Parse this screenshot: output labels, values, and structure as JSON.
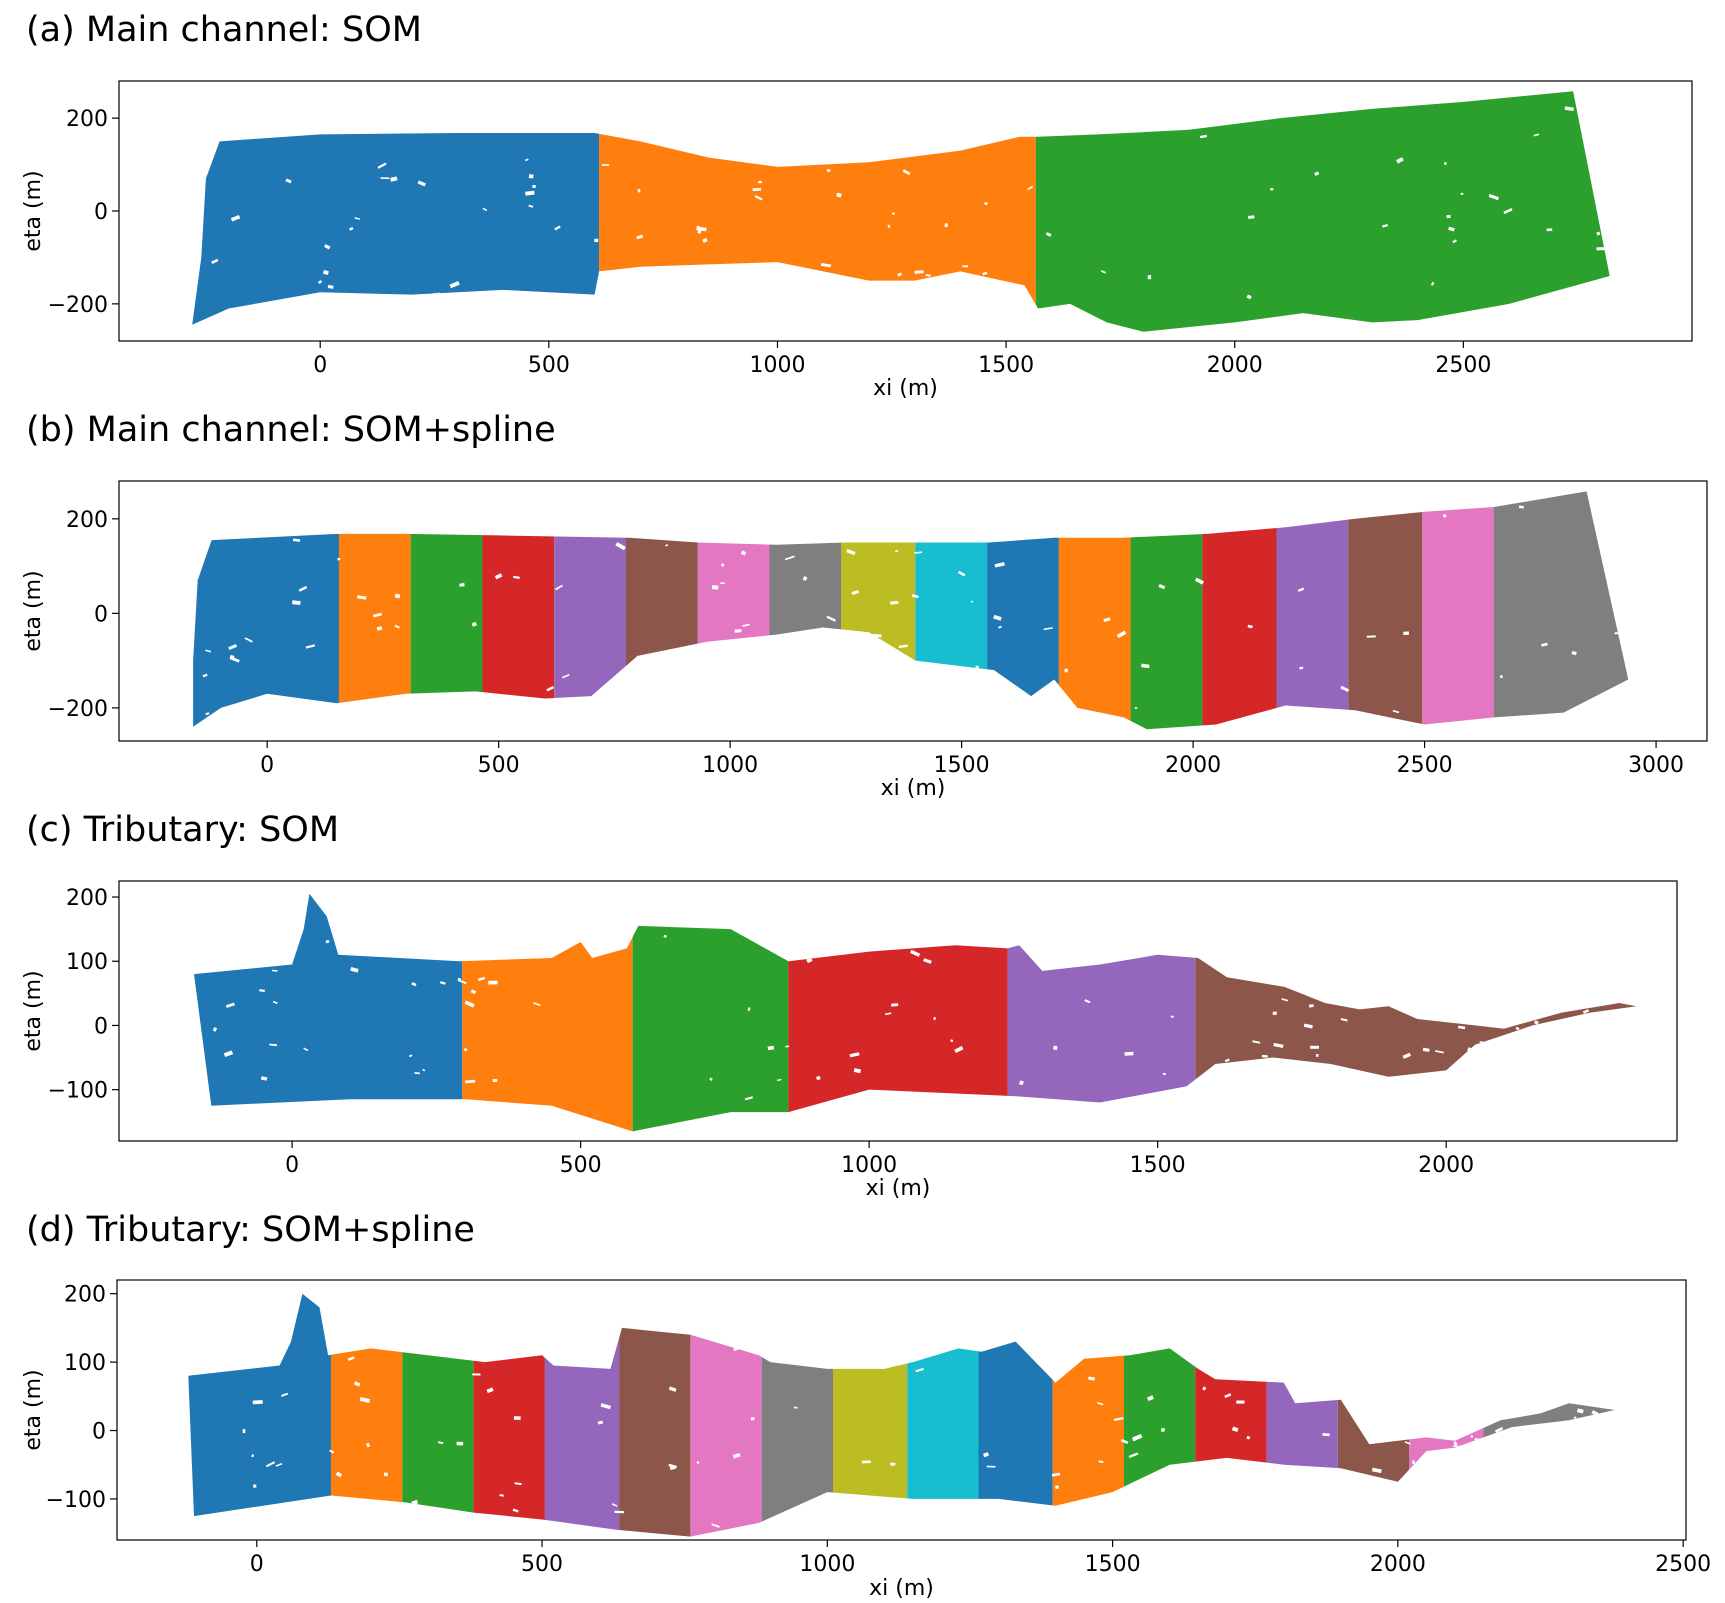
{
  "colors": {
    "tab:blue": "#1f77b4",
    "tab:orange": "#ff7f0e",
    "tab:green": "#2ca02c",
    "tab:red": "#d62728",
    "tab:purple": "#9467bd",
    "tab:brown": "#8c564b",
    "tab:pink": "#e377c2",
    "tab:gray": "#7f7f7f",
    "tab:olive": "#bcbd22",
    "tab:cyan": "#17becf"
  },
  "chart_data": [
    {
      "id": "a",
      "type": "scatter",
      "title": "(a) Main channel: SOM",
      "xlabel": "xi (m)",
      "ylabel": "eta (m)",
      "xlim": [
        -440,
        3000
      ],
      "ylim": [
        -280,
        280
      ],
      "xticks": [
        0,
        500,
        1000,
        1500,
        2000,
        2500
      ],
      "yticks": [
        -200,
        0,
        200
      ],
      "ytick_labels": [
        "−200",
        "0",
        "200"
      ],
      "grid": false,
      "legend": "none",
      "upper_bound": [
        [
          -260,
          -100
        ],
        [
          -250,
          70
        ],
        [
          -220,
          150
        ],
        [
          0,
          165
        ],
        [
          300,
          168
        ],
        [
          600,
          168
        ],
        [
          700,
          150
        ],
        [
          850,
          115
        ],
        [
          1000,
          95
        ],
        [
          1200,
          105
        ],
        [
          1400,
          130
        ],
        [
          1530,
          160
        ],
        [
          1570,
          160
        ],
        [
          1700,
          165
        ],
        [
          1900,
          175
        ],
        [
          2100,
          200
        ],
        [
          2300,
          220
        ],
        [
          2500,
          235
        ],
        [
          2740,
          258
        ],
        [
          2820,
          -140
        ]
      ],
      "lower_bound": [
        [
          2820,
          -140
        ],
        [
          2600,
          -200
        ],
        [
          2400,
          -235
        ],
        [
          2300,
          -240
        ],
        [
          2150,
          -220
        ],
        [
          2000,
          -240
        ],
        [
          1800,
          -260
        ],
        [
          1720,
          -240
        ],
        [
          1640,
          -200
        ],
        [
          1570,
          -210
        ],
        [
          1540,
          -160
        ],
        [
          1400,
          -130
        ],
        [
          1300,
          -150
        ],
        [
          1200,
          -150
        ],
        [
          1000,
          -110
        ],
        [
          850,
          -115
        ],
        [
          700,
          -120
        ],
        [
          610,
          -130
        ],
        [
          600,
          -180
        ],
        [
          400,
          -170
        ],
        [
          200,
          -180
        ],
        [
          0,
          -175
        ],
        [
          -200,
          -210
        ],
        [
          -280,
          -245
        ]
      ],
      "segments": [
        {
          "name": "segment 1",
          "x_from": -285,
          "x_to": 610,
          "color": "#1f77b4"
        },
        {
          "name": "segment 2",
          "x_from": 610,
          "x_to": 1565,
          "color": "#ff7f0e"
        },
        {
          "name": "segment 3",
          "x_from": 1565,
          "x_to": 2825,
          "color": "#2ca02c"
        }
      ]
    },
    {
      "id": "b",
      "type": "scatter",
      "title": "(b) Main channel: SOM+spline",
      "xlabel": "xi (m)",
      "ylabel": "eta (m)",
      "xlim": [
        -320,
        3110
      ],
      "ylim": [
        -270,
        280
      ],
      "xticks": [
        0,
        500,
        1000,
        1500,
        2000,
        2500,
        3000
      ],
      "yticks": [
        -200,
        0,
        200
      ],
      "ytick_labels": [
        "−200",
        "0",
        "200"
      ],
      "grid": false,
      "legend": "none",
      "upper_bound": [
        [
          -160,
          -100
        ],
        [
          -150,
          70
        ],
        [
          -120,
          155
        ],
        [
          150,
          168
        ],
        [
          300,
          168
        ],
        [
          500,
          165
        ],
        [
          780,
          160
        ],
        [
          930,
          150
        ],
        [
          1100,
          145
        ],
        [
          1250,
          150
        ],
        [
          1400,
          150
        ],
        [
          1560,
          150
        ],
        [
          1700,
          160
        ],
        [
          1850,
          160
        ],
        [
          2030,
          168
        ],
        [
          2200,
          182
        ],
        [
          2350,
          200
        ],
        [
          2500,
          215
        ],
        [
          2650,
          225
        ],
        [
          2850,
          258
        ],
        [
          2940,
          -140
        ]
      ],
      "lower_bound": [
        [
          2940,
          -140
        ],
        [
          2800,
          -210
        ],
        [
          2650,
          -220
        ],
        [
          2500,
          -235
        ],
        [
          2350,
          -205
        ],
        [
          2200,
          -195
        ],
        [
          2050,
          -235
        ],
        [
          1900,
          -245
        ],
        [
          1850,
          -220
        ],
        [
          1750,
          -200
        ],
        [
          1700,
          -140
        ],
        [
          1650,
          -175
        ],
        [
          1570,
          -120
        ],
        [
          1400,
          -100
        ],
        [
          1300,
          -40
        ],
        [
          1200,
          -30
        ],
        [
          1100,
          -45
        ],
        [
          950,
          -60
        ],
        [
          800,
          -90
        ],
        [
          700,
          -175
        ],
        [
          600,
          -180
        ],
        [
          450,
          -165
        ],
        [
          300,
          -170
        ],
        [
          150,
          -190
        ],
        [
          0,
          -170
        ],
        [
          -100,
          -200
        ],
        [
          -160,
          -240
        ]
      ],
      "segments": [
        {
          "name": "segment 1",
          "x_from": -165,
          "x_to": 155,
          "color": "#1f77b4"
        },
        {
          "name": "segment 2",
          "x_from": 155,
          "x_to": 310,
          "color": "#ff7f0e"
        },
        {
          "name": "segment 3",
          "x_from": 310,
          "x_to": 465,
          "color": "#2ca02c"
        },
        {
          "name": "segment 4",
          "x_from": 465,
          "x_to": 620,
          "color": "#d62728"
        },
        {
          "name": "segment 5",
          "x_from": 620,
          "x_to": 775,
          "color": "#9467bd"
        },
        {
          "name": "segment 6",
          "x_from": 775,
          "x_to": 930,
          "color": "#8c564b"
        },
        {
          "name": "segment 7",
          "x_from": 930,
          "x_to": 1085,
          "color": "#e377c2"
        },
        {
          "name": "segment 8",
          "x_from": 1085,
          "x_to": 1240,
          "color": "#7f7f7f"
        },
        {
          "name": "segment 9",
          "x_from": 1240,
          "x_to": 1400,
          "color": "#bcbd22"
        },
        {
          "name": "segment 10",
          "x_from": 1400,
          "x_to": 1555,
          "color": "#17becf"
        },
        {
          "name": "segment 11",
          "x_from": 1555,
          "x_to": 1710,
          "color": "#1f77b4"
        },
        {
          "name": "segment 12",
          "x_from": 1710,
          "x_to": 1865,
          "color": "#ff7f0e"
        },
        {
          "name": "segment 13",
          "x_from": 1865,
          "x_to": 2020,
          "color": "#2ca02c"
        },
        {
          "name": "segment 14",
          "x_from": 2020,
          "x_to": 2180,
          "color": "#d62728"
        },
        {
          "name": "segment 15",
          "x_from": 2180,
          "x_to": 2335,
          "color": "#9467bd"
        },
        {
          "name": "segment 16",
          "x_from": 2335,
          "x_to": 2495,
          "color": "#8c564b"
        },
        {
          "name": "segment 17",
          "x_from": 2495,
          "x_to": 2650,
          "color": "#e377c2"
        },
        {
          "name": "segment 18",
          "x_from": 2650,
          "x_to": 2945,
          "color": "#7f7f7f"
        }
      ]
    },
    {
      "id": "c",
      "type": "scatter",
      "title": "(c) Tributary: SOM",
      "xlabel": "xi (m)",
      "ylabel": "eta (m)",
      "xlim": [
        -300,
        2400
      ],
      "ylim": [
        -180,
        225
      ],
      "xticks": [
        0,
        500,
        1000,
        1500,
        2000
      ],
      "yticks": [
        -100,
        0,
        100,
        200
      ],
      "ytick_labels": [
        "−100",
        "0",
        "100",
        "200"
      ],
      "grid": false,
      "legend": "none",
      "upper_bound": [
        [
          -170,
          80
        ],
        [
          0,
          95
        ],
        [
          20,
          150
        ],
        [
          30,
          205
        ],
        [
          60,
          170
        ],
        [
          80,
          110
        ],
        [
          290,
          100
        ],
        [
          450,
          105
        ],
        [
          500,
          130
        ],
        [
          520,
          105
        ],
        [
          580,
          120
        ],
        [
          600,
          155
        ],
        [
          760,
          150
        ],
        [
          860,
          100
        ],
        [
          1000,
          115
        ],
        [
          1150,
          125
        ],
        [
          1240,
          120
        ],
        [
          1260,
          125
        ],
        [
          1300,
          85
        ],
        [
          1400,
          95
        ],
        [
          1500,
          110
        ],
        [
          1570,
          105
        ],
        [
          1620,
          75
        ],
        [
          1720,
          60
        ],
        [
          1790,
          35
        ],
        [
          1850,
          25
        ],
        [
          1900,
          30
        ],
        [
          1950,
          10
        ],
        [
          2050,
          0
        ],
        [
          2100,
          -5
        ],
        [
          2200,
          20
        ],
        [
          2300,
          35
        ],
        [
          2330,
          30
        ]
      ],
      "lower_bound": [
        [
          2330,
          30
        ],
        [
          2250,
          20
        ],
        [
          2150,
          0
        ],
        [
          2050,
          -30
        ],
        [
          2000,
          -70
        ],
        [
          1900,
          -80
        ],
        [
          1800,
          -60
        ],
        [
          1700,
          -50
        ],
        [
          1600,
          -60
        ],
        [
          1550,
          -95
        ],
        [
          1400,
          -120
        ],
        [
          1250,
          -110
        ],
        [
          1000,
          -100
        ],
        [
          860,
          -135
        ],
        [
          760,
          -135
        ],
        [
          590,
          -165
        ],
        [
          450,
          -125
        ],
        [
          300,
          -115
        ],
        [
          100,
          -115
        ],
        [
          -140,
          -125
        ],
        [
          -170,
          80
        ]
      ],
      "segments": [
        {
          "name": "segment 1",
          "x_from": -175,
          "x_to": 295,
          "color": "#1f77b4"
        },
        {
          "name": "segment 2",
          "x_from": 295,
          "x_to": 590,
          "color": "#ff7f0e"
        },
        {
          "name": "segment 3",
          "x_from": 590,
          "x_to": 860,
          "color": "#2ca02c"
        },
        {
          "name": "segment 4",
          "x_from": 860,
          "x_to": 1240,
          "color": "#d62728"
        },
        {
          "name": "segment 5",
          "x_from": 1240,
          "x_to": 1565,
          "color": "#9467bd"
        },
        {
          "name": "segment 6",
          "x_from": 1565,
          "x_to": 2335,
          "color": "#8c564b"
        }
      ]
    },
    {
      "id": "d",
      "type": "scatter",
      "title": "(d) Tributary: SOM+spline",
      "xlabel": "xi (m)",
      "ylabel": "eta (m)",
      "xlim": [
        -245,
        2505
      ],
      "ylim": [
        -160,
        220
      ],
      "xticks": [
        0,
        500,
        1000,
        1500,
        2000,
        2500
      ],
      "yticks": [
        -100,
        0,
        100,
        200
      ],
      "ytick_labels": [
        "−100",
        "0",
        "100",
        "200"
      ],
      "grid": false,
      "legend": "none",
      "upper_bound": [
        [
          -120,
          80
        ],
        [
          40,
          95
        ],
        [
          60,
          130
        ],
        [
          80,
          200
        ],
        [
          110,
          180
        ],
        [
          125,
          110
        ],
        [
          200,
          120
        ],
        [
          400,
          100
        ],
        [
          500,
          110
        ],
        [
          520,
          95
        ],
        [
          620,
          90
        ],
        [
          640,
          150
        ],
        [
          760,
          140
        ],
        [
          880,
          110
        ],
        [
          900,
          100
        ],
        [
          1000,
          90
        ],
        [
          1100,
          90
        ],
        [
          1150,
          100
        ],
        [
          1230,
          120
        ],
        [
          1270,
          115
        ],
        [
          1330,
          130
        ],
        [
          1400,
          70
        ],
        [
          1450,
          105
        ],
        [
          1530,
          110
        ],
        [
          1600,
          120
        ],
        [
          1650,
          90
        ],
        [
          1680,
          75
        ],
        [
          1800,
          70
        ],
        [
          1820,
          40
        ],
        [
          1900,
          45
        ],
        [
          1950,
          -20
        ],
        [
          2050,
          -10
        ],
        [
          2100,
          -15
        ],
        [
          2180,
          15
        ],
        [
          2250,
          25
        ],
        [
          2300,
          40
        ],
        [
          2380,
          30
        ]
      ],
      "lower_bound": [
        [
          2380,
          30
        ],
        [
          2300,
          15
        ],
        [
          2200,
          5
        ],
        [
          2100,
          -25
        ],
        [
          2050,
          -30
        ],
        [
          2000,
          -75
        ],
        [
          1900,
          -55
        ],
        [
          1800,
          -50
        ],
        [
          1700,
          -40
        ],
        [
          1600,
          -50
        ],
        [
          1500,
          -90
        ],
        [
          1400,
          -110
        ],
        [
          1300,
          -100
        ],
        [
          1150,
          -100
        ],
        [
          1000,
          -90
        ],
        [
          880,
          -135
        ],
        [
          760,
          -155
        ],
        [
          630,
          -145
        ],
        [
          500,
          -130
        ],
        [
          380,
          -120
        ],
        [
          260,
          -105
        ],
        [
          130,
          -95
        ],
        [
          -110,
          -125
        ],
        [
          -120,
          80
        ]
      ],
      "segments": [
        {
          "name": "segment 1",
          "x_from": -125,
          "x_to": 130,
          "color": "#1f77b4"
        },
        {
          "name": "segment 2",
          "x_from": 130,
          "x_to": 255,
          "color": "#ff7f0e"
        },
        {
          "name": "segment 3",
          "x_from": 255,
          "x_to": 380,
          "color": "#2ca02c"
        },
        {
          "name": "segment 4",
          "x_from": 380,
          "x_to": 505,
          "color": "#d62728"
        },
        {
          "name": "segment 5",
          "x_from": 505,
          "x_to": 635,
          "color": "#9467bd"
        },
        {
          "name": "segment 6",
          "x_from": 635,
          "x_to": 760,
          "color": "#8c564b"
        },
        {
          "name": "segment 7",
          "x_from": 760,
          "x_to": 885,
          "color": "#e377c2"
        },
        {
          "name": "segment 8",
          "x_from": 885,
          "x_to": 1010,
          "color": "#7f7f7f"
        },
        {
          "name": "segment 9",
          "x_from": 1010,
          "x_to": 1140,
          "color": "#bcbd22"
        },
        {
          "name": "segment 10",
          "x_from": 1140,
          "x_to": 1265,
          "color": "#17becf"
        },
        {
          "name": "segment 11",
          "x_from": 1265,
          "x_to": 1395,
          "color": "#1f77b4"
        },
        {
          "name": "segment 12",
          "x_from": 1395,
          "x_to": 1520,
          "color": "#ff7f0e"
        },
        {
          "name": "segment 13",
          "x_from": 1520,
          "x_to": 1645,
          "color": "#2ca02c"
        },
        {
          "name": "segment 14",
          "x_from": 1645,
          "x_to": 1770,
          "color": "#d62728"
        },
        {
          "name": "segment 15",
          "x_from": 1770,
          "x_to": 1895,
          "color": "#9467bd"
        },
        {
          "name": "segment 16",
          "x_from": 1895,
          "x_to": 2020,
          "color": "#8c564b"
        },
        {
          "name": "segment 17",
          "x_from": 2020,
          "x_to": 2150,
          "color": "#e377c2"
        },
        {
          "name": "segment 18",
          "x_from": 2150,
          "x_to": 2385,
          "color": "#7f7f7f"
        }
      ]
    }
  ]
}
